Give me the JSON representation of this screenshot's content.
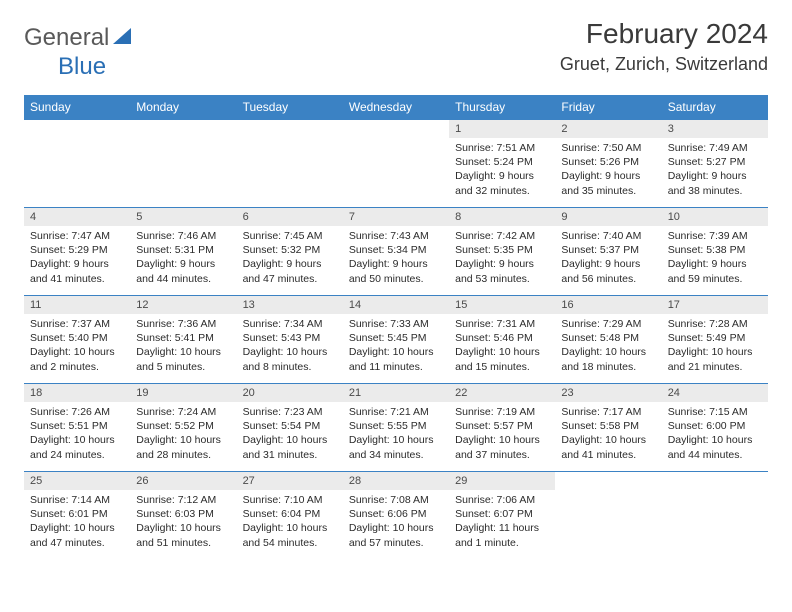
{
  "logo": {
    "g_text": "General",
    "blue_text": "Blue",
    "text_color": "#595959",
    "accent_color": "#2a6fb5"
  },
  "title": "February 2024",
  "subtitle": "Gruet, Zurich, Switzerland",
  "theme": {
    "header_bg": "#3b82c4",
    "header_fg": "#ffffff",
    "row_border": "#3b82c4",
    "daynum_bg": "#ebebeb",
    "body_fg": "#2b2b2b",
    "font_family": "Arial, Helvetica, sans-serif",
    "title_fontsize": 28,
    "subtitle_fontsize": 18,
    "th_fontsize": 12,
    "cell_fontsize": 10.5
  },
  "weekdays": [
    "Sunday",
    "Monday",
    "Tuesday",
    "Wednesday",
    "Thursday",
    "Friday",
    "Saturday"
  ],
  "weeks": [
    [
      null,
      null,
      null,
      null,
      {
        "n": "1",
        "sr": "7:51 AM",
        "ss": "5:24 PM",
        "dl": "9 hours and 32 minutes."
      },
      {
        "n": "2",
        "sr": "7:50 AM",
        "ss": "5:26 PM",
        "dl": "9 hours and 35 minutes."
      },
      {
        "n": "3",
        "sr": "7:49 AM",
        "ss": "5:27 PM",
        "dl": "9 hours and 38 minutes."
      }
    ],
    [
      {
        "n": "4",
        "sr": "7:47 AM",
        "ss": "5:29 PM",
        "dl": "9 hours and 41 minutes."
      },
      {
        "n": "5",
        "sr": "7:46 AM",
        "ss": "5:31 PM",
        "dl": "9 hours and 44 minutes."
      },
      {
        "n": "6",
        "sr": "7:45 AM",
        "ss": "5:32 PM",
        "dl": "9 hours and 47 minutes."
      },
      {
        "n": "7",
        "sr": "7:43 AM",
        "ss": "5:34 PM",
        "dl": "9 hours and 50 minutes."
      },
      {
        "n": "8",
        "sr": "7:42 AM",
        "ss": "5:35 PM",
        "dl": "9 hours and 53 minutes."
      },
      {
        "n": "9",
        "sr": "7:40 AM",
        "ss": "5:37 PM",
        "dl": "9 hours and 56 minutes."
      },
      {
        "n": "10",
        "sr": "7:39 AM",
        "ss": "5:38 PM",
        "dl": "9 hours and 59 minutes."
      }
    ],
    [
      {
        "n": "11",
        "sr": "7:37 AM",
        "ss": "5:40 PM",
        "dl": "10 hours and 2 minutes."
      },
      {
        "n": "12",
        "sr": "7:36 AM",
        "ss": "5:41 PM",
        "dl": "10 hours and 5 minutes."
      },
      {
        "n": "13",
        "sr": "7:34 AM",
        "ss": "5:43 PM",
        "dl": "10 hours and 8 minutes."
      },
      {
        "n": "14",
        "sr": "7:33 AM",
        "ss": "5:45 PM",
        "dl": "10 hours and 11 minutes."
      },
      {
        "n": "15",
        "sr": "7:31 AM",
        "ss": "5:46 PM",
        "dl": "10 hours and 15 minutes."
      },
      {
        "n": "16",
        "sr": "7:29 AM",
        "ss": "5:48 PM",
        "dl": "10 hours and 18 minutes."
      },
      {
        "n": "17",
        "sr": "7:28 AM",
        "ss": "5:49 PM",
        "dl": "10 hours and 21 minutes."
      }
    ],
    [
      {
        "n": "18",
        "sr": "7:26 AM",
        "ss": "5:51 PM",
        "dl": "10 hours and 24 minutes."
      },
      {
        "n": "19",
        "sr": "7:24 AM",
        "ss": "5:52 PM",
        "dl": "10 hours and 28 minutes."
      },
      {
        "n": "20",
        "sr": "7:23 AM",
        "ss": "5:54 PM",
        "dl": "10 hours and 31 minutes."
      },
      {
        "n": "21",
        "sr": "7:21 AM",
        "ss": "5:55 PM",
        "dl": "10 hours and 34 minutes."
      },
      {
        "n": "22",
        "sr": "7:19 AM",
        "ss": "5:57 PM",
        "dl": "10 hours and 37 minutes."
      },
      {
        "n": "23",
        "sr": "7:17 AM",
        "ss": "5:58 PM",
        "dl": "10 hours and 41 minutes."
      },
      {
        "n": "24",
        "sr": "7:15 AM",
        "ss": "6:00 PM",
        "dl": "10 hours and 44 minutes."
      }
    ],
    [
      {
        "n": "25",
        "sr": "7:14 AM",
        "ss": "6:01 PM",
        "dl": "10 hours and 47 minutes."
      },
      {
        "n": "26",
        "sr": "7:12 AM",
        "ss": "6:03 PM",
        "dl": "10 hours and 51 minutes."
      },
      {
        "n": "27",
        "sr": "7:10 AM",
        "ss": "6:04 PM",
        "dl": "10 hours and 54 minutes."
      },
      {
        "n": "28",
        "sr": "7:08 AM",
        "ss": "6:06 PM",
        "dl": "10 hours and 57 minutes."
      },
      {
        "n": "29",
        "sr": "7:06 AM",
        "ss": "6:07 PM",
        "dl": "11 hours and 1 minute."
      },
      null,
      null
    ]
  ],
  "labels": {
    "sunrise": "Sunrise:",
    "sunset": "Sunset:",
    "daylight": "Daylight:"
  }
}
